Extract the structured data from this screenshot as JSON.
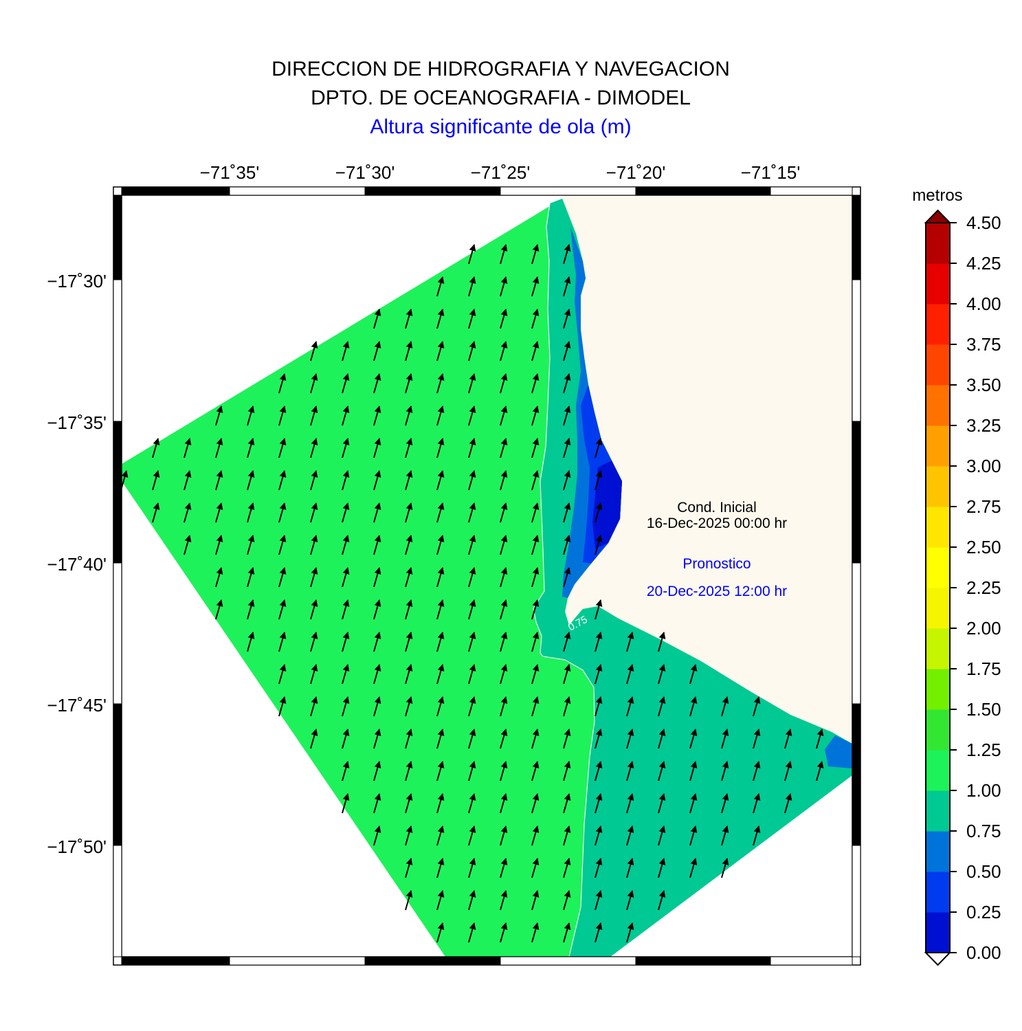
{
  "header": {
    "line1": "DIRECCION DE HIDROGRAFIA Y NAVEGACION",
    "line2": "DPTO. DE OCEANOGRAFIA - DIMODEL",
    "line3": "Altura significante de ola (m)"
  },
  "map": {
    "lon_ticks": [
      "−71˚35'",
      "−71˚30'",
      "−71˚25'",
      "−71˚20'",
      "−71˚15'"
    ],
    "lat_ticks": [
      "−17˚30'",
      "−17˚35'",
      "−17˚40'",
      "−17˚45'",
      "−17˚50'"
    ],
    "contour_label": "0.75",
    "land_color": "#fdf9ee",
    "zone_colors": {
      "c_100_125": "#1ef25a",
      "c_075_100": "#00c993",
      "c_050_075": "#0073db",
      "c_025_050": "#003bf0",
      "c_000_025": "#0010d2"
    },
    "info": {
      "cond_label": "Cond. Inicial",
      "cond_date": "16-Dec-2025 00:00 hr",
      "forecast_label": "Pronostico",
      "forecast_date": "20-Dec-2025 12:00 hr"
    }
  },
  "colorbar": {
    "unit": "metros",
    "ticks": [
      "0.00",
      "0.25",
      "0.50",
      "0.75",
      "1.00",
      "1.25",
      "1.50",
      "1.75",
      "2.00",
      "2.25",
      "2.50",
      "2.75",
      "3.00",
      "3.25",
      "3.50",
      "3.75",
      "4.00",
      "4.25",
      "4.50"
    ],
    "colors": [
      "#0010d2",
      "#003bf0",
      "#0073db",
      "#00c993",
      "#1ef25a",
      "#33e632",
      "#73f000",
      "#c6f500",
      "#f5f500",
      "#ffff00",
      "#ffe600",
      "#ffc400",
      "#ffa000",
      "#ff7200",
      "#ff4600",
      "#ff2000",
      "#e60000",
      "#b40000"
    ]
  }
}
